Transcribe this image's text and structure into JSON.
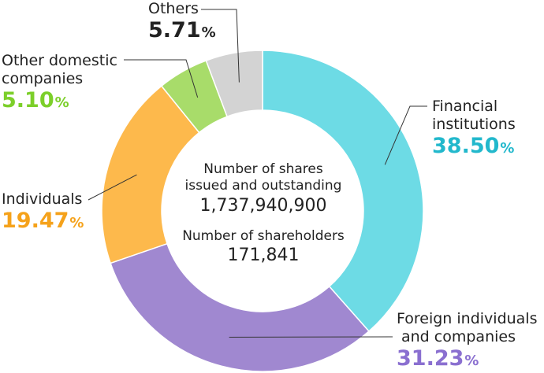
{
  "chart_data": {
    "type": "pie",
    "variant": "donut",
    "categories": [
      "Financial institutions",
      "Foreign individuals and companies",
      "Individuals",
      "Other domestic companies",
      "Others"
    ],
    "values": [
      38.5,
      31.23,
      19.47,
      5.1,
      5.71
    ],
    "unit": "%",
    "colors": [
      "#6ddbe5",
      "#a088d0",
      "#fdb94c",
      "#a8dc6a",
      "#d3d3d3"
    ],
    "label_colors": [
      "#22b8cc",
      "#8a6fd0",
      "#f5a21b",
      "#7ccf2a",
      "#222222"
    ],
    "slices": [
      {
        "name_lines": [
          "Financial",
          "institutions"
        ],
        "pct": "38.50"
      },
      {
        "name_lines": [
          "Foreign individuals",
          "and companies"
        ],
        "pct": "31.23"
      },
      {
        "name_lines": [
          "Individuals"
        ],
        "pct": "19.47"
      },
      {
        "name_lines": [
          "Other domestic",
          "companies"
        ],
        "pct": "5.10"
      },
      {
        "name_lines": [
          "Others"
        ],
        "pct": "5.71"
      }
    ],
    "center": {
      "shares_caption_1": "Number of shares",
      "shares_caption_2": "issued and outstanding",
      "shares_value": "1,737,940,900",
      "holders_caption": "Number of shareholders",
      "holders_value": "171,841"
    }
  }
}
